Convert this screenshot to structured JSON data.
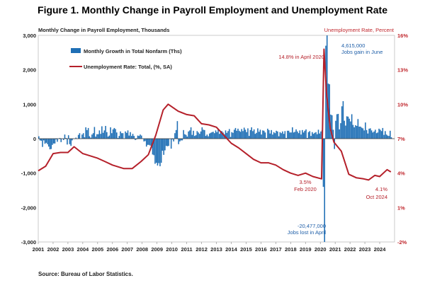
{
  "title": "Figure 1. Monthly Change in Payroll Employment and Unemployment Rate",
  "source": "Source: Bureau of Labor Statistics.",
  "colors": {
    "bars": "#1f6fb5",
    "line": "#b5202a",
    "right_axis": "#c0272d"
  },
  "chart_data": {
    "type": "bar",
    "left_axis": {
      "label": "Monthly Change in Payroll Employment, Thousands",
      "ylim": [
        -3000,
        3000
      ],
      "ticks": [
        "3,000",
        "2,000",
        "1,000",
        "0",
        "-1,000",
        "-2,000",
        "-3,000"
      ]
    },
    "right_axis": {
      "label": "Unemployment Rate, Percent",
      "ylim": [
        -2,
        16
      ],
      "ticks": [
        "16%",
        "13%",
        "10%",
        "7%",
        "4%",
        "1%",
        "-2%"
      ]
    },
    "x_axis": {
      "ticks": [
        "2001",
        "2002",
        "2003",
        "2004",
        "2005",
        "2006",
        "2007",
        "2008",
        "2009",
        "2010",
        "2011",
        "2012",
        "2013",
        "2014",
        "2015",
        "2016",
        "2017",
        "2018",
        "2019",
        "2020",
        "2021",
        "2022",
        "2023",
        "2024"
      ]
    },
    "legend": {
      "placement": "top-left",
      "bars_label": "Monthly Growth in Total Nonfarm (Ths)",
      "line_label": "Unemployment Rate: Total, (%, SA)"
    },
    "series": [
      {
        "name": "Monthly Growth in Total Nonfarm (Ths)",
        "kind": "bar",
        "frequency": "monthly",
        "start": "2001-01",
        "values_by_year": {
          "2001": [
            70,
            -50,
            -60,
            -240,
            -50,
            -150,
            -120,
            -160,
            -230,
            -310,
            -300,
            -180
          ],
          "2002": [
            -140,
            -140,
            -20,
            -90,
            0,
            20,
            -100,
            0,
            -40,
            120,
            20,
            -170
          ],
          "2003": [
            100,
            -160,
            -210,
            -50,
            0,
            0,
            30,
            0,
            110,
            160,
            0,
            120
          ],
          "2004": [
            160,
            40,
            330,
            250,
            310,
            70,
            30,
            120,
            160,
            340,
            60,
            130
          ],
          "2005": [
            130,
            240,
            140,
            360,
            170,
            240,
            370,
            190,
            60,
            90,
            330,
            160
          ],
          "2006": [
            270,
            310,
            280,
            180,
            20,
            80,
            210,
            160,
            160,
            0,
            210,
            170
          ],
          "2007": [
            240,
            90,
            190,
            80,
            140,
            80,
            -40,
            -20,
            90,
            80,
            120,
            90
          ],
          "2008": [
            10,
            -80,
            -70,
            -230,
            -180,
            -180,
            -200,
            -270,
            -460,
            -480,
            -730,
            -700
          ],
          "2009": [
            -780,
            -710,
            -800,
            -700,
            -350,
            -470,
            -340,
            -210,
            -220,
            -210,
            0,
            -290
          ],
          "2010": [
            -20,
            -80,
            160,
            250,
            510,
            -160,
            -80,
            -50,
            -50,
            250,
            130,
            110
          ],
          "2011": [
            60,
            210,
            240,
            330,
            110,
            230,
            80,
            100,
            220,
            180,
            140,
            210
          ],
          "2012": [
            330,
            260,
            250,
            80,
            120,
            70,
            150,
            170,
            190,
            200,
            160,
            240
          ],
          "2013": [
            190,
            280,
            140,
            190,
            220,
            180,
            130,
            240,
            170,
            220,
            280,
            50
          ],
          "2014": [
            190,
            170,
            260,
            310,
            230,
            290,
            230,
            200,
            280,
            220,
            320,
            260
          ],
          "2015": [
            190,
            300,
            80,
            250,
            330,
            220,
            270,
            140,
            170,
            300,
            200,
            260
          ],
          "2016": [
            120,
            240,
            230,
            180,
            20,
            290,
            250,
            150,
            250,
            120,
            190,
            160
          ],
          "2017": [
            230,
            210,
            70,
            190,
            160,
            210,
            140,
            220,
            20,
            230,
            230,
            180
          ],
          "2018": [
            180,
            330,
            180,
            200,
            270,
            210,
            160,
            240,
            120,
            250,
            180,
            230
          ],
          "2019": [
            270,
            20,
            190,
            220,
            80,
            190,
            140,
            170,
            190,
            130,
            260,
            150
          ],
          "2020": [
            210,
            250,
            -1400,
            -20477,
            2700,
            4615,
            1600,
            1580,
            700,
            680,
            260,
            -300
          ],
          "2021": [
            520,
            710,
            720,
            270,
            450,
            940,
            1090,
            520,
            380,
            650,
            640,
            580
          ],
          "2022": [
            500,
            710,
            400,
            330,
            390,
            370,
            570,
            350,
            350,
            320,
            300,
            240
          ],
          "2023": [
            470,
            250,
            150,
            290,
            300,
            240,
            180,
            210,
            260,
            160,
            180,
            290
          ],
          "2024": [
            260,
            220,
            310,
            110,
            220,
            120,
            90,
            80,
            230,
            40
          ]
        }
      },
      {
        "name": "Unemployment Rate: Total, (%, SA)",
        "kind": "line",
        "unit": "%",
        "points": [
          [
            "2001-01",
            4.2
          ],
          [
            "2001-07",
            4.6
          ],
          [
            "2002-01",
            5.7
          ],
          [
            "2002-07",
            5.8
          ],
          [
            "2003-01",
            5.8
          ],
          [
            "2003-06",
            6.3
          ],
          [
            "2004-01",
            5.7
          ],
          [
            "2004-07",
            5.5
          ],
          [
            "2005-01",
            5.3
          ],
          [
            "2005-07",
            5.0
          ],
          [
            "2006-01",
            4.7
          ],
          [
            "2006-10",
            4.4
          ],
          [
            "2007-05",
            4.4
          ],
          [
            "2007-12",
            5.0
          ],
          [
            "2008-06",
            5.6
          ],
          [
            "2008-12",
            7.3
          ],
          [
            "2009-06",
            9.5
          ],
          [
            "2009-10",
            10.0
          ],
          [
            "2010-06",
            9.4
          ],
          [
            "2011-01",
            9.1
          ],
          [
            "2011-07",
            9.0
          ],
          [
            "2012-01",
            8.3
          ],
          [
            "2012-07",
            8.2
          ],
          [
            "2013-01",
            8.0
          ],
          [
            "2013-07",
            7.3
          ],
          [
            "2014-01",
            6.6
          ],
          [
            "2014-07",
            6.2
          ],
          [
            "2015-01",
            5.7
          ],
          [
            "2015-07",
            5.2
          ],
          [
            "2016-01",
            4.9
          ],
          [
            "2016-07",
            4.9
          ],
          [
            "2017-01",
            4.7
          ],
          [
            "2017-07",
            4.3
          ],
          [
            "2018-01",
            4.0
          ],
          [
            "2018-07",
            3.8
          ],
          [
            "2019-01",
            4.0
          ],
          [
            "2019-07",
            3.7
          ],
          [
            "2020-02",
            3.5
          ],
          [
            "2020-04",
            14.8
          ],
          [
            "2020-06",
            11.0
          ],
          [
            "2020-09",
            7.9
          ],
          [
            "2020-12",
            6.7
          ],
          [
            "2021-06",
            5.9
          ],
          [
            "2021-12",
            3.9
          ],
          [
            "2022-06",
            3.6
          ],
          [
            "2022-12",
            3.5
          ],
          [
            "2023-04",
            3.4
          ],
          [
            "2023-09",
            3.8
          ],
          [
            "2024-01",
            3.7
          ],
          [
            "2024-07",
            4.3
          ],
          [
            "2024-10",
            4.1
          ]
        ]
      }
    ],
    "annotations": {
      "peak_rate": "14.8% in April 2020",
      "jobs_gain_value": "4,615,000",
      "jobs_gain_text": "Jobs gain in June",
      "feb_rate": "3.5%",
      "feb_date": "Feb 2020",
      "jobs_lost_value": "-20,477,000",
      "jobs_lost_text": "Jobs lost in April",
      "oct_rate": "4.1%",
      "oct_date": "Oct 2024"
    }
  }
}
